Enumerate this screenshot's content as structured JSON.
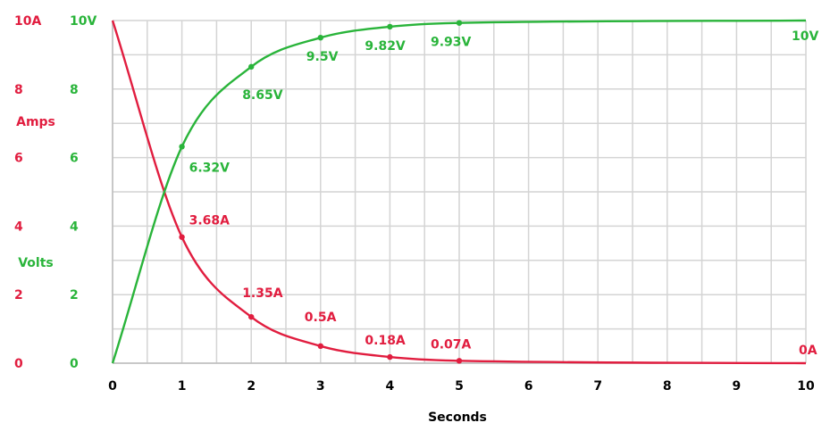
{
  "chart_data": {
    "type": "line",
    "title": "",
    "xlabel": "Seconds",
    "ylabel_left_current": "Amps",
    "ylabel_left_voltage": "Volts",
    "xlim": [
      0,
      10
    ],
    "ylim": [
      0,
      10
    ],
    "grid": true,
    "x_ticks": [
      "0",
      "1",
      "2",
      "3",
      "4",
      "5",
      "6",
      "7",
      "8",
      "9",
      "10"
    ],
    "y_ticks_current": [
      "0",
      "2",
      "4",
      "6",
      "8",
      "10A"
    ],
    "y_ticks_voltage": [
      "0",
      "2",
      "4",
      "6",
      "8",
      "10V"
    ],
    "colors": {
      "current": "#e11d3f",
      "voltage": "#29b43a",
      "grid": "#d4d4d4"
    },
    "series": [
      {
        "x": [
          0,
          1,
          2,
          3,
          4,
          5,
          10
        ],
        "values": [
          10,
          3.68,
          1.35,
          0.5,
          0.18,
          0.07,
          0
        ],
        "labels": [
          "",
          "3.68A",
          "1.35A",
          "0.5A",
          "0.18A",
          "0.07A",
          "0A"
        ]
      },
      {
        "x": [
          0,
          1,
          2,
          3,
          4,
          5,
          10
        ],
        "values": [
          0,
          6.32,
          8.65,
          9.5,
          9.82,
          9.93,
          10
        ],
        "labels": [
          "",
          "6.32V",
          "8.65V",
          "9.5V",
          "9.82V",
          "9.93V",
          "10V"
        ]
      }
    ]
  }
}
